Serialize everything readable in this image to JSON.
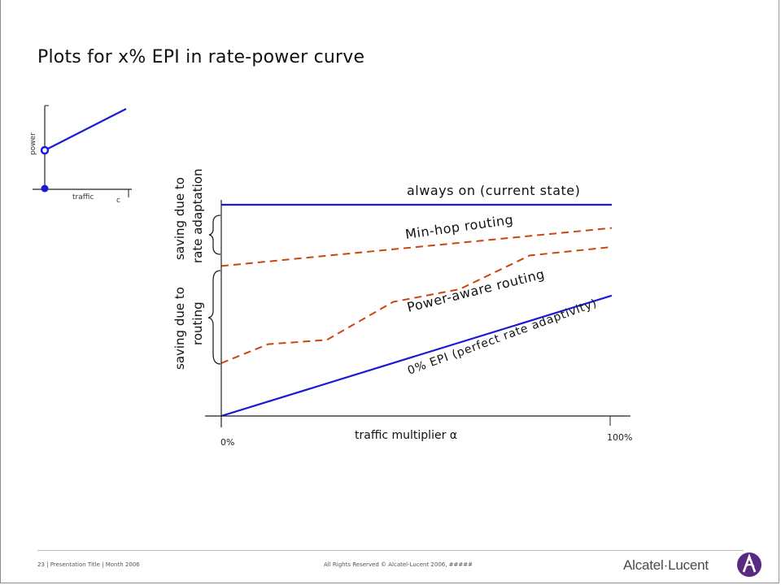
{
  "slide": {
    "title": "Plots for x% EPI in rate-power curve"
  },
  "inset": {
    "ylabel": "power",
    "xlabel": "traffic",
    "cap_label": "c"
  },
  "chart_data": {
    "type": "line",
    "xlabel": "traffic multiplier α",
    "xticks": [
      "0%",
      "100%"
    ],
    "x": [
      0,
      100
    ],
    "series": [
      {
        "name": "always on (current state)",
        "style": "solid",
        "color": "#1a1ad6",
        "points": [
          [
            0,
            100
          ],
          [
            100,
            100
          ]
        ]
      },
      {
        "name": "Min-hop routing",
        "style": "dashed",
        "color": "#cc4410",
        "points": [
          [
            0,
            71
          ],
          [
            100,
            89
          ]
        ]
      },
      {
        "name": "Power-aware  routing",
        "style": "dashed",
        "color": "#cc4410",
        "points": [
          [
            0,
            25
          ],
          [
            12,
            34
          ],
          [
            27,
            36
          ],
          [
            44,
            54
          ],
          [
            61,
            60
          ],
          [
            79,
            76
          ],
          [
            100,
            80
          ]
        ]
      },
      {
        "name": "0% EPI (perfect rate adaptivity)",
        "style": "solid",
        "color": "#1a1ad6",
        "points": [
          [
            0,
            0
          ],
          [
            100,
            57
          ]
        ]
      }
    ]
  },
  "annotations": {
    "rate_adaptation_line1": "saving due to",
    "rate_adaptation_line2": "rate adaptation",
    "routing_line1": "saving due to",
    "routing_line2": "routing"
  },
  "footer": {
    "left": "23 | Presentation Title | Month 2006",
    "center": "All Rights Reserved © Alcatel-Lucent 2006, #####",
    "logo_text": "Alcatel·Lucent"
  },
  "colors": {
    "blue": "#1a1ad6",
    "orange": "#cc4410",
    "logo_purple": "#5a2a82"
  }
}
